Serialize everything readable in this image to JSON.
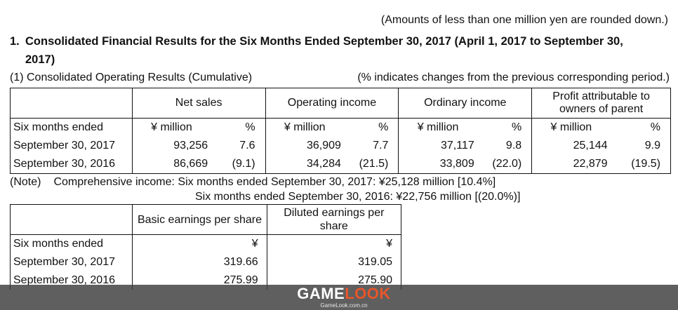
{
  "top_note": "(Amounts of less than one million yen are rounded down.)",
  "heading": {
    "number": "1.",
    "line1": "Consolidated Financial Results for the Six Months Ended September 30, 2017 (April 1, 2017 to September 30,",
    "line2": "2017)"
  },
  "subheading": {
    "left": "(1) Consolidated Operating Results (Cumulative)",
    "right": "(% indicates changes from the previous corresponding period.)"
  },
  "results_table": {
    "columns": [
      "Net sales",
      "Operating income",
      "Ordinary income",
      "Profit attributable to owners of parent"
    ],
    "unit_row": {
      "label": "Six months ended",
      "unit": "¥ million",
      "pct": "%"
    },
    "rows": [
      {
        "label": "September 30, 2017",
        "values": [
          "93,256",
          "7.6",
          "36,909",
          "7.7",
          "37,117",
          "9.8",
          "25,144",
          "9.9"
        ]
      },
      {
        "label": "September 30, 2016",
        "values": [
          "86,669",
          "(9.1)",
          "34,284",
          "(21.5)",
          "33,809",
          "(22.0)",
          "22,879",
          "(19.5)"
        ]
      }
    ]
  },
  "comprehensive_note": {
    "note_label": "(Note)",
    "line1": "Comprehensive income:  Six months ended September 30, 2017: ¥25,128 million [10.4%]",
    "line2": "Six months ended September 30, 2016: ¥22,756 million [(20.0%)]"
  },
  "eps_table": {
    "columns": [
      "Basic earnings per share",
      "Diluted earnings per share"
    ],
    "unit_row": {
      "label": "Six months ended",
      "unit": "¥"
    },
    "rows": [
      {
        "label": "September 30, 2017",
        "values": [
          "319.66",
          "319.05"
        ]
      },
      {
        "label": "September 30, 2016",
        "values": [
          "275.99",
          "275.90"
        ]
      }
    ]
  },
  "watermark": {
    "brand_a": "GAME",
    "brand_b": "LOOK",
    "url": "GameLook.com.cn"
  }
}
